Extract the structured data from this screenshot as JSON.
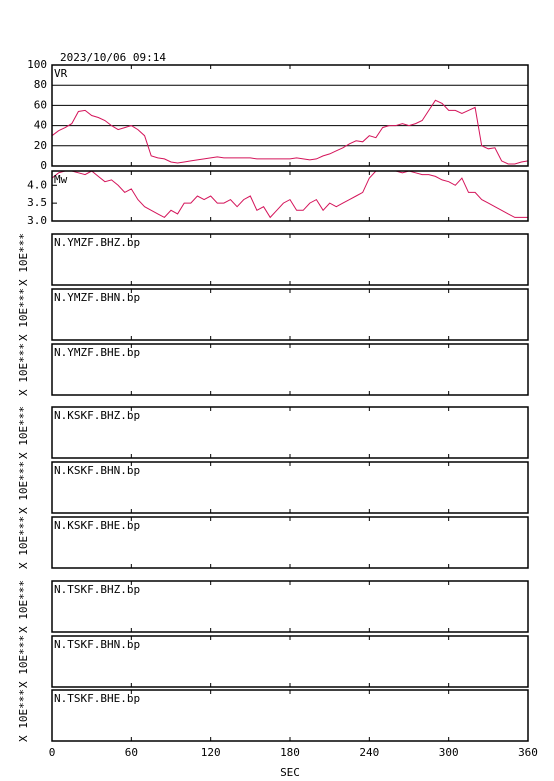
{
  "chart_data": [
    {
      "type": "line",
      "title": "2023/10/06 09:14",
      "label": "VR",
      "color": "#d4145a",
      "grid": true,
      "xlim": [
        0,
        360
      ],
      "xticks": [
        0,
        60,
        120,
        180,
        240,
        300,
        360
      ],
      "ylim": [
        0,
        100
      ],
      "yticks": [
        0,
        20,
        40,
        60,
        80,
        100
      ],
      "x": [
        0,
        5,
        10,
        15,
        20,
        25,
        30,
        35,
        40,
        45,
        50,
        55,
        60,
        65,
        70,
        75,
        80,
        85,
        90,
        95,
        100,
        105,
        110,
        115,
        120,
        125,
        130,
        135,
        140,
        145,
        150,
        155,
        160,
        165,
        170,
        175,
        180,
        185,
        190,
        195,
        200,
        205,
        210,
        215,
        220,
        225,
        230,
        235,
        240,
        245,
        250,
        255,
        260,
        265,
        270,
        275,
        280,
        285,
        290,
        295,
        300,
        305,
        310,
        315,
        320,
        325,
        330,
        335,
        340,
        345,
        350,
        355,
        360
      ],
      "values": [
        30,
        35,
        38,
        42,
        54,
        55,
        50,
        48,
        45,
        40,
        36,
        38,
        40,
        36,
        30,
        10,
        8,
        7,
        4,
        3,
        4,
        5,
        6,
        7,
        8,
        9,
        8,
        8,
        8,
        8,
        8,
        7,
        7,
        7,
        7,
        7,
        7,
        8,
        7,
        6,
        7,
        10,
        12,
        15,
        18,
        22,
        25,
        24,
        30,
        28,
        38,
        40,
        40,
        42,
        40,
        42,
        45,
        55,
        65,
        62,
        55,
        55,
        52,
        55,
        58,
        20,
        17,
        18,
        5,
        2,
        2,
        4,
        5
      ]
    },
    {
      "type": "line",
      "label": "Mw",
      "color": "#d4145a",
      "xlim": [
        0,
        360
      ],
      "xticks": [
        0,
        60,
        120,
        180,
        240,
        300,
        360
      ],
      "ylim": [
        3.0,
        4.4
      ],
      "yticks": [
        {
          "value": 3,
          "label": "3.0"
        },
        3.5,
        {
          "value": 4,
          "label": "4.0"
        }
      ],
      "x": [
        0,
        5,
        10,
        15,
        20,
        25,
        30,
        35,
        40,
        45,
        50,
        55,
        60,
        65,
        70,
        75,
        80,
        85,
        90,
        95,
        100,
        105,
        110,
        115,
        120,
        125,
        130,
        135,
        140,
        145,
        150,
        155,
        160,
        165,
        170,
        175,
        180,
        185,
        190,
        195,
        200,
        205,
        210,
        215,
        220,
        225,
        230,
        235,
        240,
        245,
        250,
        255,
        260,
        265,
        270,
        275,
        280,
        285,
        290,
        295,
        300,
        305,
        310,
        315,
        320,
        325,
        330,
        335,
        340,
        345,
        350,
        355,
        360
      ],
      "values": [
        4.2,
        4.35,
        4.4,
        4.4,
        4.35,
        4.3,
        4.4,
        4.25,
        4.1,
        4.15,
        4.0,
        3.8,
        3.9,
        3.6,
        3.4,
        3.3,
        3.2,
        3.1,
        3.3,
        3.2,
        3.5,
        3.5,
        3.7,
        3.6,
        3.7,
        3.5,
        3.5,
        3.6,
        3.4,
        3.6,
        3.7,
        3.3,
        3.4,
        3.1,
        3.3,
        3.5,
        3.6,
        3.3,
        3.3,
        3.5,
        3.6,
        3.3,
        3.5,
        3.4,
        3.5,
        3.6,
        3.7,
        3.8,
        4.2,
        4.4,
        4.4,
        4.4,
        4.4,
        4.35,
        4.4,
        4.35,
        4.3,
        4.3,
        4.25,
        4.15,
        4.1,
        4.0,
        4.2,
        3.8,
        3.8,
        3.6,
        3.5,
        3.4,
        3.3,
        3.2,
        3.1,
        3.1,
        3.1
      ]
    },
    {
      "type": "line",
      "label": "N.YMZF.BHZ.bp",
      "ylabel": "X 10E***",
      "xlim": [
        0,
        360
      ],
      "xticks": [
        0,
        60,
        120,
        180,
        240,
        300,
        360
      ]
    },
    {
      "type": "line",
      "label": "N.YMZF.BHN.bp",
      "ylabel": "X 10E***",
      "xlim": [
        0,
        360
      ],
      "xticks": [
        0,
        60,
        120,
        180,
        240,
        300,
        360
      ]
    },
    {
      "type": "line",
      "label": "N.YMZF.BHE.bp",
      "ylabel": "X 10E***",
      "xlim": [
        0,
        360
      ],
      "xticks": [
        0,
        60,
        120,
        180,
        240,
        300,
        360
      ]
    },
    {
      "type": "line",
      "label": "N.KSKF.BHZ.bp",
      "ylabel": "X 10E***",
      "xlim": [
        0,
        360
      ],
      "xticks": [
        0,
        60,
        120,
        180,
        240,
        300,
        360
      ]
    },
    {
      "type": "line",
      "label": "N.KSKF.BHN.bp",
      "ylabel": "X 10E***",
      "xlim": [
        0,
        360
      ],
      "xticks": [
        0,
        60,
        120,
        180,
        240,
        300,
        360
      ]
    },
    {
      "type": "line",
      "label": "N.KSKF.BHE.bp",
      "ylabel": "X 10E***",
      "xlim": [
        0,
        360
      ],
      "xticks": [
        0,
        60,
        120,
        180,
        240,
        300,
        360
      ]
    },
    {
      "type": "line",
      "label": "N.TSKF.BHZ.bp",
      "ylabel": "X 10E***",
      "xlim": [
        0,
        360
      ],
      "xticks": [
        0,
        60,
        120,
        180,
        240,
        300,
        360
      ]
    },
    {
      "type": "line",
      "label": "N.TSKF.BHN.bp",
      "ylabel": "X 10E***",
      "xlim": [
        0,
        360
      ],
      "xticks": [
        0,
        60,
        120,
        180,
        240,
        300,
        360
      ]
    },
    {
      "type": "line",
      "label": "N.TSKF.BHE.bp",
      "ylabel": "X 10E***",
      "xlabel": "SEC",
      "xlim": [
        0,
        360
      ],
      "xticks": [
        0,
        60,
        120,
        180,
        240,
        300,
        360
      ]
    }
  ]
}
